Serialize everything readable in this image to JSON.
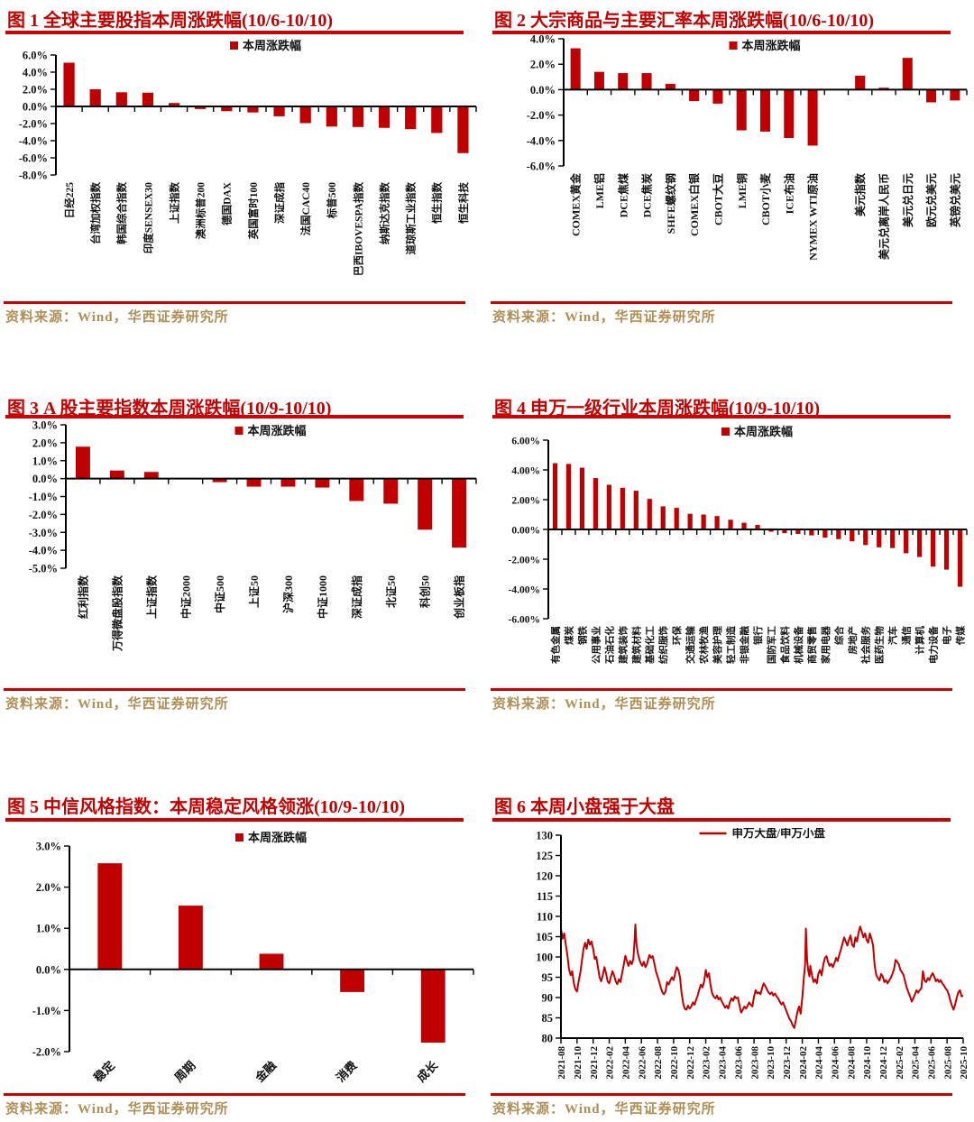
{
  "colors": {
    "bar_red": "#C00000",
    "rule_red": "#CC0000",
    "title_red": "#C40000",
    "source_tan": "#B08F55",
    "axis_black": "#000000"
  },
  "chart_data": [
    {
      "type": "bar",
      "title": "图 1 全球主要股指本周涨跌幅(10/6-10/10)",
      "legend": "本周涨跌幅",
      "source": "资料来源：Wind，华西证券研究所",
      "categories": [
        "日经225",
        "台湾加权指数",
        "韩国综合指数",
        "印度SENSEX30",
        "上证指数",
        "澳洲标普200",
        "德国DAX",
        "英国富时100",
        "深证成指",
        "法国CAC40",
        "标普500",
        "巴西IBOVESPA指数",
        "纳斯达克指数",
        "道琼斯工业指数",
        "恒生指数",
        "恒生科技"
      ],
      "values": [
        5.1,
        2.0,
        1.65,
        1.6,
        0.4,
        -0.3,
        -0.55,
        -0.7,
        -1.15,
        -1.95,
        -2.35,
        -2.4,
        -2.5,
        -2.65,
        -3.1,
        -5.45
      ],
      "ylim": [
        -8,
        6
      ],
      "ytick_step": 2,
      "ytick_decimals": 1,
      "ytick_suffix": "%",
      "grid": false,
      "legend_position": "top-center",
      "bar_color": "#C00000"
    },
    {
      "type": "bar",
      "title": "图 2 大宗商品与主要汇率本周涨跌幅(10/6-10/10)",
      "legend": "本周涨跌幅",
      "source": "资料来源：Wind，华西证券研究所",
      "categories": [
        "COMEX黄金",
        "LME铝",
        "DCE焦煤",
        "DCE焦炭",
        "SHFE螺纹钢",
        "COMEX白银",
        "CBOT大豆",
        "LME铜",
        "CBOT小麦",
        "ICE布油",
        "NYMEX WTI原油",
        "",
        "美元指数",
        "美元兑离岸人民币",
        "美元兑日元",
        "欧元兑美元",
        "英镑兑美元"
      ],
      "values": [
        3.25,
        1.4,
        1.3,
        1.3,
        0.45,
        -0.9,
        -1.1,
        -3.2,
        -3.3,
        -3.8,
        -4.4,
        null,
        1.1,
        0.15,
        2.5,
        -1.0,
        -0.85
      ],
      "ylim": [
        -6,
        4
      ],
      "ytick_step": 2,
      "ytick_decimals": 1,
      "ytick_suffix": "%",
      "grid": false,
      "legend_position": "top-center",
      "bar_color": "#C00000"
    },
    {
      "type": "bar",
      "title": "图 3 A 股主要指数本周涨跌幅(10/9-10/10)",
      "legend": "本周涨跌幅",
      "source": "资料来源：Wind，华西证券研究所",
      "categories": [
        "红利指数",
        "万得微盘股指数",
        "上证指数",
        "中证2000",
        "中证500",
        "上证50",
        "沪深300",
        "中证1000",
        "深证成指",
        "北证50",
        "科创50",
        "创业板指"
      ],
      "values": [
        1.78,
        0.45,
        0.37,
        -0.03,
        -0.2,
        -0.45,
        -0.45,
        -0.5,
        -1.25,
        -1.4,
        -2.85,
        -3.85
      ],
      "ylim": [
        -5,
        3
      ],
      "ytick_step": 1,
      "ytick_decimals": 1,
      "ytick_suffix": "%",
      "grid": false,
      "legend_position": "top-center",
      "bar_color": "#C00000"
    },
    {
      "type": "bar",
      "title": "图 4 申万一级行业本周涨跌幅(10/9-10/10)",
      "legend": "本周涨跌幅",
      "source": "资料来源：Wind，华西证券研究所",
      "categories": [
        "有色金属",
        "煤炭",
        "钢铁",
        "公用事业",
        "石油石化",
        "建筑装饰",
        "建筑材料",
        "基础化工",
        "纺织服饰",
        "环保",
        "交通运输",
        "农林牧渔",
        "美容护理",
        "轻工制造",
        "非银金融",
        "银行",
        "国防军工",
        "食品饮料",
        "机械设备",
        "商贸零售",
        "家用电器",
        "综合",
        "房地产",
        "社会服务",
        "医药生物",
        "汽车",
        "通信",
        "计算机",
        "电力设备",
        "电子",
        "传媒"
      ],
      "values": [
        4.45,
        4.4,
        4.15,
        3.45,
        3.0,
        2.8,
        2.6,
        2.05,
        1.55,
        1.45,
        1.05,
        1.0,
        0.9,
        0.65,
        0.45,
        0.3,
        -0.15,
        -0.25,
        -0.3,
        -0.4,
        -0.55,
        -0.65,
        -0.8,
        -1.05,
        -1.2,
        -1.25,
        -1.6,
        -1.85,
        -2.5,
        -2.7,
        -3.85
      ],
      "ylim": [
        -6,
        6
      ],
      "ytick_step": 2,
      "ytick_decimals": 2,
      "ytick_suffix": "%",
      "grid": false,
      "legend_position": "top-center",
      "bar_color": "#C00000"
    },
    {
      "type": "bar",
      "title": "图 5 中信风格指数：本周稳定风格领涨(10/9-10/10)",
      "legend": "本周涨跌幅",
      "source": "资料来源：Wind，华西证券研究所",
      "categories": [
        "稳定",
        "周期",
        "金融",
        "消费",
        "成长"
      ],
      "values": [
        2.58,
        1.55,
        0.38,
        -0.55,
        -1.78
      ],
      "ylim": [
        -2,
        3
      ],
      "ytick_step": 1,
      "ytick_decimals": 1,
      "ytick_suffix": "%",
      "grid": false,
      "legend_position": "top-center",
      "bar_color": "#C00000"
    },
    {
      "type": "line",
      "title": "图 6 本周小盘强于大盘",
      "legend": "申万大盘/申万小盘",
      "source": "资料来源：Wind，华西证券研究所",
      "x_labels": [
        "2021-08",
        "2021-10",
        "2021-12",
        "2022-02",
        "2022-04",
        "2022-06",
        "2022-08",
        "2022-10",
        "2022-12",
        "2023-02",
        "2023-04",
        "2023-06",
        "2023-08",
        "2023-10",
        "2023-12",
        "2024-02",
        "2024-04",
        "2024-06",
        "2024-08",
        "2024-10",
        "2024-12",
        "2025-02",
        "2025-04",
        "2025-06",
        "2025-08",
        "2025-10"
      ],
      "x_range": [
        0,
        50
      ],
      "ylim": [
        80,
        130
      ],
      "ytick_step": 5,
      "ytick_decimals": 0,
      "ytick_suffix": "",
      "grid": false,
      "legend_position": "top-center",
      "line_color": "#C00000",
      "points": [
        [
          0,
          107
        ],
        [
          0.2,
          104.5
        ],
        [
          0.4,
          105.8
        ],
        [
          0.6,
          103
        ],
        [
          0.8,
          100.5
        ],
        [
          1,
          97
        ],
        [
          1.2,
          95.5
        ],
        [
          1.4,
          96.5
        ],
        [
          1.6,
          93.5
        ],
        [
          1.8,
          92
        ],
        [
          2,
          91.5
        ],
        [
          2.2,
          94
        ],
        [
          2.4,
          96
        ],
        [
          2.6,
          99
        ],
        [
          2.8,
          102
        ],
        [
          3,
          103.5
        ],
        [
          3.2,
          102
        ],
        [
          3.4,
          104.3
        ],
        [
          3.6,
          103
        ],
        [
          3.8,
          103.8
        ],
        [
          4,
          102
        ],
        [
          4.2,
          99.5
        ],
        [
          4.4,
          100
        ],
        [
          4.6,
          97.5
        ],
        [
          4.8,
          95
        ],
        [
          5,
          94
        ],
        [
          5.2,
          95.5
        ],
        [
          5.4,
          97.5
        ],
        [
          5.6,
          96
        ],
        [
          5.8,
          94
        ],
        [
          6,
          93.5
        ],
        [
          6.2,
          95
        ],
        [
          6.4,
          96.5
        ],
        [
          6.6,
          95.5
        ],
        [
          6.8,
          94
        ],
        [
          7,
          93.3
        ],
        [
          7.2,
          94.5
        ],
        [
          7.4,
          93.8
        ],
        [
          7.6,
          96
        ],
        [
          7.8,
          98
        ],
        [
          8,
          100.3
        ],
        [
          8.2,
          99
        ],
        [
          8.4,
          97.8
        ],
        [
          8.6,
          99
        ],
        [
          8.8,
          98.2
        ],
        [
          9,
          99.5
        ],
        [
          9.15,
          104
        ],
        [
          9.25,
          108
        ],
        [
          9.4,
          103
        ],
        [
          9.55,
          101
        ],
        [
          9.7,
          99.8
        ],
        [
          9.9,
          98.5
        ],
        [
          10.1,
          97.8
        ],
        [
          10.3,
          98.8
        ],
        [
          10.5,
          97.5
        ],
        [
          10.7,
          98.3
        ],
        [
          11,
          100.5
        ],
        [
          11.2,
          99.8
        ],
        [
          11.4,
          100.2
        ],
        [
          11.6,
          98.5
        ],
        [
          11.8,
          96.5
        ],
        [
          12,
          95.3
        ],
        [
          12.2,
          94
        ],
        [
          12.4,
          92.5
        ],
        [
          12.6,
          91.3
        ],
        [
          12.8,
          90.8
        ],
        [
          13,
          91.5
        ],
        [
          13.2,
          93.8
        ],
        [
          13.4,
          93.2
        ],
        [
          13.6,
          94.2
        ],
        [
          13.8,
          95
        ],
        [
          14,
          94.3
        ],
        [
          14.2,
          96
        ],
        [
          14.4,
          97.5
        ],
        [
          14.6,
          96.8
        ],
        [
          14.8,
          95
        ],
        [
          15,
          91
        ],
        [
          15.2,
          88.5
        ],
        [
          15.4,
          87.2
        ],
        [
          15.6,
          87
        ],
        [
          15.8,
          88
        ],
        [
          16,
          87.3
        ],
        [
          16.2,
          87.8
        ],
        [
          16.4,
          88.8
        ],
        [
          16.6,
          88.2
        ],
        [
          16.8,
          89.5
        ],
        [
          17,
          90.5
        ],
        [
          17.2,
          92
        ],
        [
          17.4,
          93.2
        ],
        [
          17.6,
          92.5
        ],
        [
          17.8,
          94
        ],
        [
          18,
          96.8
        ],
        [
          18.2,
          95
        ],
        [
          18.4,
          96
        ],
        [
          18.6,
          93
        ],
        [
          18.8,
          91
        ],
        [
          19,
          90.2
        ],
        [
          19.2,
          89.8
        ],
        [
          19.4,
          90.5
        ],
        [
          19.6,
          89.5
        ],
        [
          19.8,
          90
        ],
        [
          20,
          89
        ],
        [
          20.2,
          88.3
        ],
        [
          20.4,
          87.5
        ],
        [
          20.6,
          88
        ],
        [
          20.8,
          87.3
        ],
        [
          21,
          88.8
        ],
        [
          21.2,
          89.8
        ],
        [
          21.4,
          89.2
        ],
        [
          21.6,
          90.3
        ],
        [
          21.8,
          89.8
        ],
        [
          22,
          90
        ],
        [
          22.2,
          88
        ],
        [
          22.4,
          86.3
        ],
        [
          22.6,
          87
        ],
        [
          22.8,
          87.8
        ],
        [
          23,
          87.3
        ],
        [
          23.2,
          88
        ],
        [
          23.4,
          88.8
        ],
        [
          23.6,
          88.2
        ],
        [
          23.8,
          87.8
        ],
        [
          24,
          90.3
        ],
        [
          24.2,
          91.8
        ],
        [
          24.4,
          91
        ],
        [
          24.6,
          91.3
        ],
        [
          24.8,
          90.8
        ],
        [
          25,
          92.3
        ],
        [
          25.2,
          93.5
        ],
        [
          25.4,
          92.8
        ],
        [
          25.6,
          92
        ],
        [
          25.8,
          91.3
        ],
        [
          26,
          90.8
        ],
        [
          26.2,
          91.3
        ],
        [
          26.4,
          90.5
        ],
        [
          26.6,
          91
        ],
        [
          26.8,
          90.3
        ],
        [
          27,
          89.8
        ],
        [
          27.2,
          89
        ],
        [
          27.4,
          88.3
        ],
        [
          27.6,
          88.8
        ],
        [
          27.8,
          87.8
        ],
        [
          28,
          86.8
        ],
        [
          28.2,
          85.8
        ],
        [
          28.4,
          84.8
        ],
        [
          28.6,
          84.2
        ],
        [
          28.8,
          83.2
        ],
        [
          29,
          82.5
        ],
        [
          29.2,
          84.5
        ],
        [
          29.4,
          86.5
        ],
        [
          29.6,
          87.8
        ],
        [
          29.8,
          86
        ],
        [
          30,
          90
        ],
        [
          30.2,
          95
        ],
        [
          30.35,
          98
        ],
        [
          30.45,
          107
        ],
        [
          30.6,
          99
        ],
        [
          30.75,
          96.5
        ],
        [
          30.9,
          95.2
        ],
        [
          31,
          97.8
        ],
        [
          31.2,
          95.5
        ],
        [
          31.4,
          93.8
        ],
        [
          31.6,
          94.5
        ],
        [
          31.8,
          93.5
        ],
        [
          32,
          95.8
        ],
        [
          32.2,
          96.8
        ],
        [
          32.4,
          95.5
        ],
        [
          32.6,
          98
        ],
        [
          32.8,
          99.7
        ],
        [
          33,
          100.2
        ],
        [
          33.2,
          98.8
        ],
        [
          33.4,
          97.8
        ],
        [
          33.6,
          98.3
        ],
        [
          33.8,
          97.5
        ],
        [
          34,
          98.5
        ],
        [
          34.2,
          99.8
        ],
        [
          34.4,
          99
        ],
        [
          34.6,
          100.5
        ],
        [
          34.8,
          101.8
        ],
        [
          35,
          103.3
        ],
        [
          35.2,
          104.8
        ],
        [
          35.4,
          103.8
        ],
        [
          35.6,
          102.8
        ],
        [
          35.8,
          104.2
        ],
        [
          36,
          105.3
        ],
        [
          36.2,
          103
        ],
        [
          36.4,
          102.5
        ],
        [
          36.6,
          104.8
        ],
        [
          36.8,
          103.8
        ],
        [
          37,
          106
        ],
        [
          37.2,
          107.5
        ],
        [
          37.4,
          106.2
        ],
        [
          37.6,
          104.8
        ],
        [
          37.8,
          105.8
        ],
        [
          38,
          104.2
        ],
        [
          38.2,
          103.5
        ],
        [
          38.4,
          105.8
        ],
        [
          38.6,
          104.5
        ],
        [
          38.8,
          102.8
        ],
        [
          39,
          97.8
        ],
        [
          39.2,
          95.5
        ],
        [
          39.4,
          94.8
        ],
        [
          39.6,
          94.2
        ],
        [
          39.8,
          95.8
        ],
        [
          40,
          95.2
        ],
        [
          40.2,
          93.8
        ],
        [
          40.4,
          94.3
        ],
        [
          40.6,
          93.5
        ],
        [
          40.8,
          94.2
        ],
        [
          41,
          94.8
        ],
        [
          41.2,
          95.8
        ],
        [
          41.4,
          97
        ],
        [
          41.6,
          99.3
        ],
        [
          41.8,
          98.8
        ],
        [
          42,
          98.2
        ],
        [
          42.2,
          96.8
        ],
        [
          42.4,
          96.2
        ],
        [
          42.6,
          95.5
        ],
        [
          42.8,
          93.8
        ],
        [
          43,
          92.3
        ],
        [
          43.2,
          91.3
        ],
        [
          43.4,
          90.3
        ],
        [
          43.6,
          89
        ],
        [
          43.8,
          89.8
        ],
        [
          44,
          90.8
        ],
        [
          44.2,
          91.8
        ],
        [
          44.4,
          91.2
        ],
        [
          44.6,
          91.8
        ],
        [
          44.8,
          92.3
        ],
        [
          45,
          96.5
        ],
        [
          45.2,
          94.2
        ],
        [
          45.4,
          93.8
        ],
        [
          45.6,
          94.8
        ],
        [
          45.8,
          94.3
        ],
        [
          46,
          95.3
        ],
        [
          46.2,
          96
        ],
        [
          46.4,
          95.2
        ],
        [
          46.6,
          94
        ],
        [
          46.8,
          94.5
        ],
        [
          47,
          93.8
        ],
        [
          47.2,
          94.3
        ],
        [
          47.4,
          93.5
        ],
        [
          47.6,
          93
        ],
        [
          47.8,
          92.3
        ],
        [
          48,
          91.8
        ],
        [
          48.2,
          90.8
        ],
        [
          48.4,
          89.3
        ],
        [
          48.6,
          88
        ],
        [
          48.8,
          87
        ],
        [
          49,
          88.3
        ],
        [
          49.2,
          90
        ],
        [
          49.4,
          91.3
        ],
        [
          49.6,
          91.8
        ],
        [
          49.8,
          90.3
        ],
        [
          50,
          90.5
        ]
      ]
    }
  ]
}
